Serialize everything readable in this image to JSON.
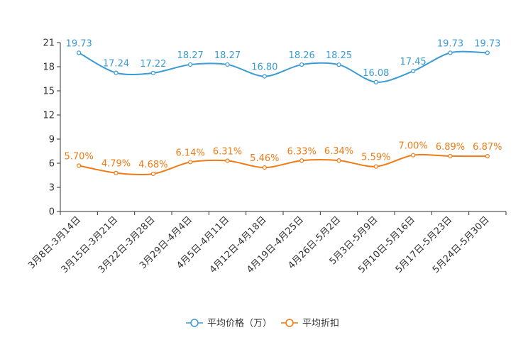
{
  "chart_data": {
    "type": "line",
    "categories": [
      "3月8日-3月14日",
      "3月15日-3月21日",
      "3月22日-3月28日",
      "3月29日-4月4日",
      "4月5日-4月11日",
      "4月12日-4月18日",
      "4月19日-4月25日",
      "4月26日-5月2日",
      "5月3日-5月9日",
      "5月10日-5月16日",
      "5月17日-5月23日",
      "5月24日-5月30日"
    ],
    "ylim": [
      0,
      21
    ],
    "yticks": [
      "0",
      "3",
      "6",
      "9",
      "12",
      "15",
      "18",
      "21"
    ],
    "grid": false,
    "legend_position": "bottom-center",
    "series": [
      {
        "name": "平均价格（万）",
        "color": "#3a9bd5",
        "values": [
          19.73,
          17.24,
          17.22,
          18.27,
          18.27,
          16.8,
          18.26,
          18.25,
          16.08,
          17.45,
          19.73,
          19.73
        ],
        "labels": [
          "19.73",
          "17.24",
          "17.22",
          "18.27",
          "18.27",
          "16.80",
          "18.26",
          "18.25",
          "16.08",
          "17.45",
          "19.73",
          "19.73"
        ]
      },
      {
        "name": "平均折扣",
        "color": "#f07b14",
        "values": [
          5.7,
          4.79,
          4.68,
          6.14,
          6.31,
          5.46,
          6.33,
          6.34,
          5.59,
          7.0,
          6.89,
          6.87
        ],
        "labels": [
          "5.70%",
          "4.79%",
          "4.68%",
          "6.14%",
          "6.31%",
          "5.46%",
          "6.33%",
          "6.34%",
          "5.59%",
          "7.00%",
          "6.89%",
          "6.87%"
        ]
      }
    ]
  }
}
